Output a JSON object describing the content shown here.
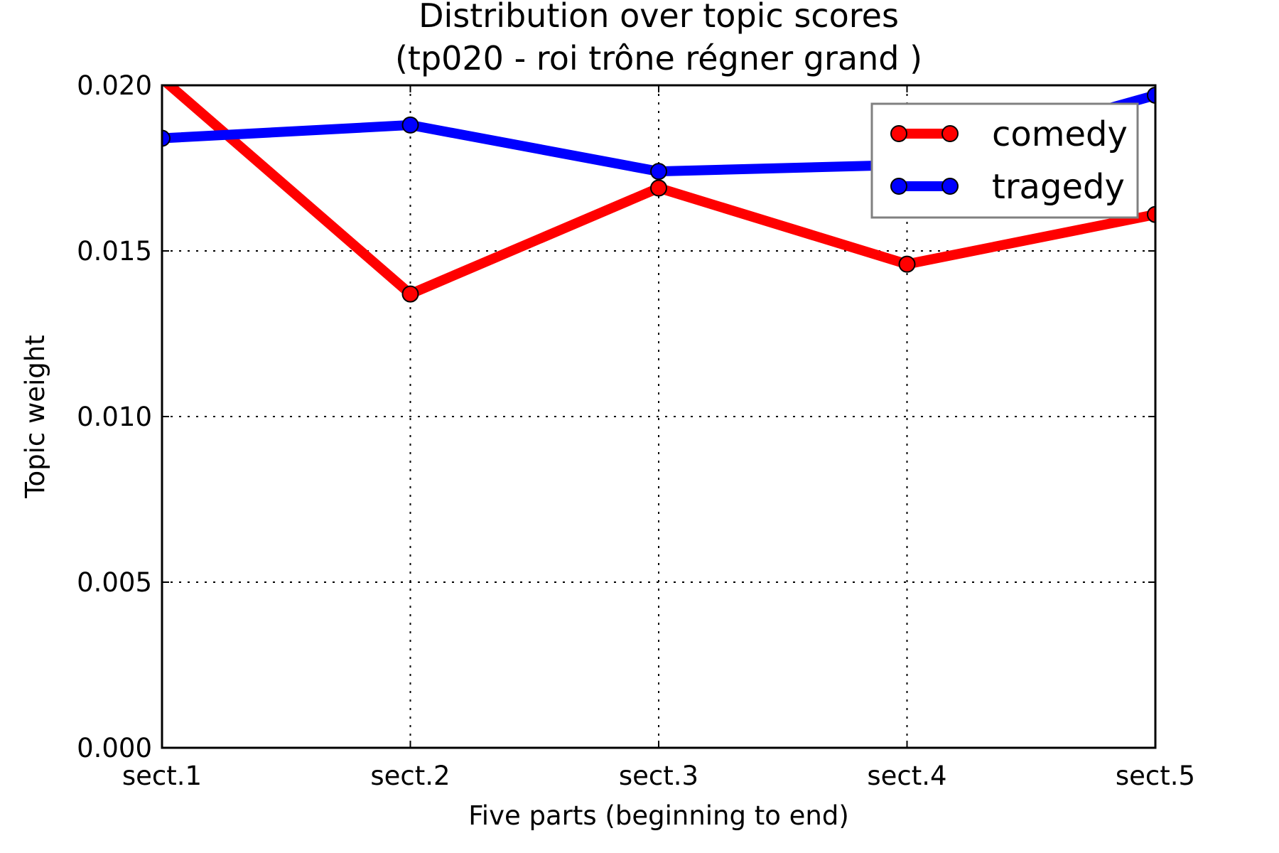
{
  "chart_data": {
    "type": "line",
    "title": "Distribution over topic scores",
    "subtitle": "(tp020 - roi trône régner grand )",
    "xlabel": "Five parts (beginning to end)",
    "ylabel": "Topic weight",
    "categories": [
      "sect.1",
      "sect.2",
      "sect.3",
      "sect.4",
      "sect.5"
    ],
    "ylim": [
      0,
      0.02
    ],
    "yticks": [
      "0.000",
      "0.005",
      "0.010",
      "0.015",
      "0.020"
    ],
    "grid": true,
    "legend_position": "top-right",
    "series": [
      {
        "name": "comedy",
        "color": "#ff0000",
        "values": [
          0.0202,
          0.0137,
          0.0169,
          0.0146,
          0.0161
        ]
      },
      {
        "name": "tragedy",
        "color": "#0000ff",
        "values": [
          0.0184,
          0.0188,
          0.0174,
          0.0176,
          0.0197
        ]
      }
    ]
  }
}
